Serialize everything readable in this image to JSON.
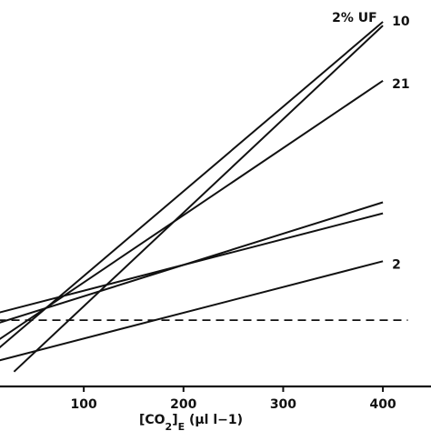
{
  "chart_data": {
    "type": "line",
    "title": "",
    "xlabel": "[CO2]E (μl l−1)",
    "xlabel_parts": {
      "main": "[CO",
      "sub1": "2",
      "mid": "]",
      "sub2": "E",
      "unit": " (μl l−1)"
    },
    "ylabel": "",
    "xlim": [
      0,
      425
    ],
    "ylim": [
      0,
      1
    ],
    "x_ticks": [
      100,
      200,
      300,
      400
    ],
    "grid": false,
    "series": [
      {
        "name": "2% UF",
        "style": "solid",
        "x": [
          30,
          400
        ],
        "y": [
          0.04,
          0.98
        ]
      },
      {
        "name": "10",
        "style": "solid",
        "x": [
          0,
          400
        ],
        "y": [
          0.07,
          0.99
        ]
      },
      {
        "name": "21",
        "style": "solid",
        "x": [
          0,
          400
        ],
        "y": [
          0.1,
          0.83
        ]
      },
      {
        "name": "",
        "style": "solid",
        "x": [
          0,
          400
        ],
        "y": [
          0.16,
          0.5
        ]
      },
      {
        "name": "",
        "style": "solid",
        "x": [
          0,
          400
        ],
        "y": [
          0.19,
          0.47
        ]
      },
      {
        "name": "2",
        "style": "solid",
        "x": [
          0,
          400
        ],
        "y": [
          0.06,
          0.34
        ]
      },
      {
        "name": "",
        "style": "dashed",
        "x": [
          0,
          425
        ],
        "y": [
          0.18,
          0.18
        ]
      }
    ]
  }
}
